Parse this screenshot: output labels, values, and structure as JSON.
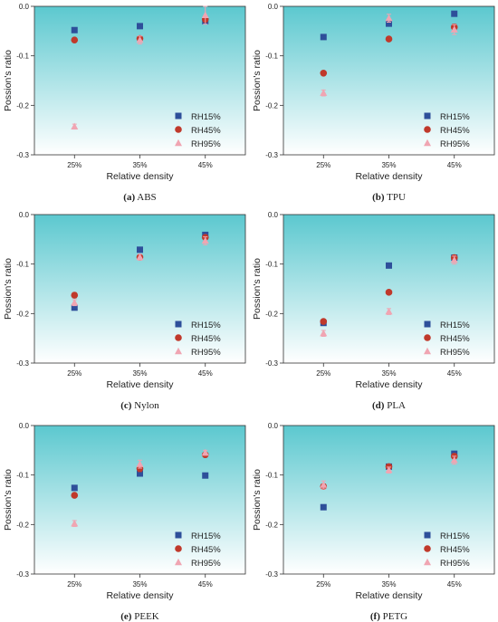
{
  "figure": {
    "colors": {
      "RH15%": "#2e4f9a",
      "RH45%": "#c0392b",
      "RH95%": "#f0a5b2",
      "plot_bg_top": "#5bc8cf",
      "plot_bg_bottom": "#ffffff"
    },
    "marker_shapes": {
      "RH15%": "square",
      "RH45%": "circle",
      "RH95%": "triangle"
    }
  },
  "chart_data": [
    {
      "type": "scatter",
      "caption_letter": "(a)",
      "caption_name": "ABS",
      "xlabel": "Relative density",
      "ylabel": "Possion's ratio",
      "categories": [
        "25%",
        "35%",
        "45%"
      ],
      "ylim": [
        -0.3,
        0.0
      ],
      "yticks": [
        "0.0",
        "-0.1",
        "-0.2",
        "-0.3"
      ],
      "legend": [
        "RH15%",
        "RH45%",
        "RH95%"
      ],
      "legend_position": "bottom-right",
      "series": [
        {
          "name": "RH15%",
          "values": [
            -0.048,
            -0.04,
            -0.03
          ],
          "errors": [
            0.003,
            0.003,
            0.005
          ]
        },
        {
          "name": "RH45%",
          "values": [
            -0.068,
            -0.065,
            -0.026
          ],
          "errors": [
            0.004,
            0.004,
            0.006
          ]
        },
        {
          "name": "RH95%",
          "values": [
            -0.243,
            -0.068,
            -0.018
          ],
          "errors": [
            0.005,
            0.008,
            0.018
          ]
        }
      ]
    },
    {
      "type": "scatter",
      "caption_letter": "(b)",
      "caption_name": "TPU",
      "xlabel": "Relative density",
      "ylabel": "Possion's ratio",
      "categories": [
        "25%",
        "35%",
        "45%"
      ],
      "ylim": [
        -0.3,
        0.0
      ],
      "yticks": [
        "0.0",
        "-0.1",
        "-0.2",
        "-0.3"
      ],
      "legend": [
        "RH15%",
        "RH45%",
        "RH95%"
      ],
      "legend_position": "bottom-right",
      "series": [
        {
          "name": "RH15%",
          "values": [
            -0.062,
            -0.035,
            -0.015
          ],
          "errors": [
            0.003,
            0.004,
            0.004
          ]
        },
        {
          "name": "RH45%",
          "values": [
            -0.135,
            -0.066,
            -0.042
          ],
          "errors": [
            0.004,
            0.004,
            0.006
          ]
        },
        {
          "name": "RH95%",
          "values": [
            -0.175,
            -0.024,
            -0.047
          ],
          "errors": [
            0.006,
            0.008,
            0.01
          ]
        }
      ]
    },
    {
      "type": "scatter",
      "caption_letter": "(c)",
      "caption_name": "Nylon",
      "xlabel": "Relative density",
      "ylabel": "Possion's ratio",
      "categories": [
        "25%",
        "35%",
        "45%"
      ],
      "ylim": [
        -0.3,
        0.0
      ],
      "yticks": [
        "0.0",
        "-0.1",
        "-0.2",
        "-0.3"
      ],
      "legend": [
        "RH15%",
        "RH45%",
        "RH95%"
      ],
      "legend_position": "bottom-right",
      "series": [
        {
          "name": "RH15%",
          "values": [
            -0.188,
            -0.071,
            -0.041
          ],
          "errors": [
            0.005,
            0.004,
            0.003
          ]
        },
        {
          "name": "RH45%",
          "values": [
            -0.163,
            -0.086,
            -0.046
          ],
          "errors": [
            0.005,
            0.004,
            0.004
          ]
        },
        {
          "name": "RH95%",
          "values": [
            -0.178,
            -0.086,
            -0.053
          ],
          "errors": [
            0.006,
            0.006,
            0.008
          ]
        }
      ]
    },
    {
      "type": "scatter",
      "caption_letter": "(d)",
      "caption_name": "PLA",
      "xlabel": "Relative density",
      "ylabel": "Possion's ratio",
      "categories": [
        "25%",
        "35%",
        "45%"
      ],
      "ylim": [
        -0.3,
        0.0
      ],
      "yticks": [
        "0.0",
        "-0.1",
        "-0.2",
        "-0.3"
      ],
      "legend": [
        "RH15%",
        "RH45%",
        "RH95%"
      ],
      "legend_position": "bottom-right",
      "series": [
        {
          "name": "RH15%",
          "values": [
            -0.219,
            -0.103,
            -0.087
          ],
          "errors": [
            0.004,
            0.004,
            0.003
          ]
        },
        {
          "name": "RH45%",
          "values": [
            -0.216,
            -0.157,
            -0.087
          ],
          "errors": [
            0.004,
            0.004,
            0.004
          ]
        },
        {
          "name": "RH95%",
          "values": [
            -0.24,
            -0.196,
            -0.092
          ],
          "errors": [
            0.006,
            0.006,
            0.008
          ]
        }
      ]
    },
    {
      "type": "scatter",
      "caption_letter": "(e)",
      "caption_name": "PEEK",
      "xlabel": "Relative density",
      "ylabel": "Possion's ratio",
      "categories": [
        "25%",
        "35%",
        "45%"
      ],
      "ylim": [
        -0.3,
        0.0
      ],
      "yticks": [
        "0.0",
        "-0.1",
        "-0.2",
        "-0.3"
      ],
      "legend": [
        "RH15%",
        "RH45%",
        "RH95%"
      ],
      "legend_position": "bottom-right",
      "series": [
        {
          "name": "RH15%",
          "values": [
            -0.126,
            -0.097,
            -0.101
          ],
          "errors": [
            0.003,
            0.004,
            0.004
          ]
        },
        {
          "name": "RH45%",
          "values": [
            -0.141,
            -0.087,
            -0.059
          ],
          "errors": [
            0.004,
            0.006,
            0.004
          ]
        },
        {
          "name": "RH95%",
          "values": [
            -0.198,
            -0.078,
            -0.055
          ],
          "errors": [
            0.006,
            0.008,
            0.005
          ]
        }
      ]
    },
    {
      "type": "scatter",
      "caption_letter": "(f)",
      "caption_name": "PETG",
      "xlabel": "Relative density",
      "ylabel": "Possion's ratio",
      "categories": [
        "25%",
        "35%",
        "45%"
      ],
      "ylim": [
        -0.3,
        0.0
      ],
      "yticks": [
        "0.0",
        "-0.1",
        "-0.2",
        "-0.3"
      ],
      "legend": [
        "RH15%",
        "RH45%",
        "RH95%"
      ],
      "legend_position": "bottom-right",
      "series": [
        {
          "name": "RH15%",
          "values": [
            -0.165,
            -0.083,
            -0.057
          ],
          "errors": [
            0.004,
            0.004,
            0.003
          ]
        },
        {
          "name": "RH45%",
          "values": [
            -0.123,
            -0.083,
            -0.062
          ],
          "errors": [
            0.005,
            0.004,
            0.005
          ]
        },
        {
          "name": "RH95%",
          "values": [
            -0.12,
            -0.09,
            -0.07
          ],
          "errors": [
            0.008,
            0.006,
            0.008
          ]
        }
      ]
    }
  ]
}
